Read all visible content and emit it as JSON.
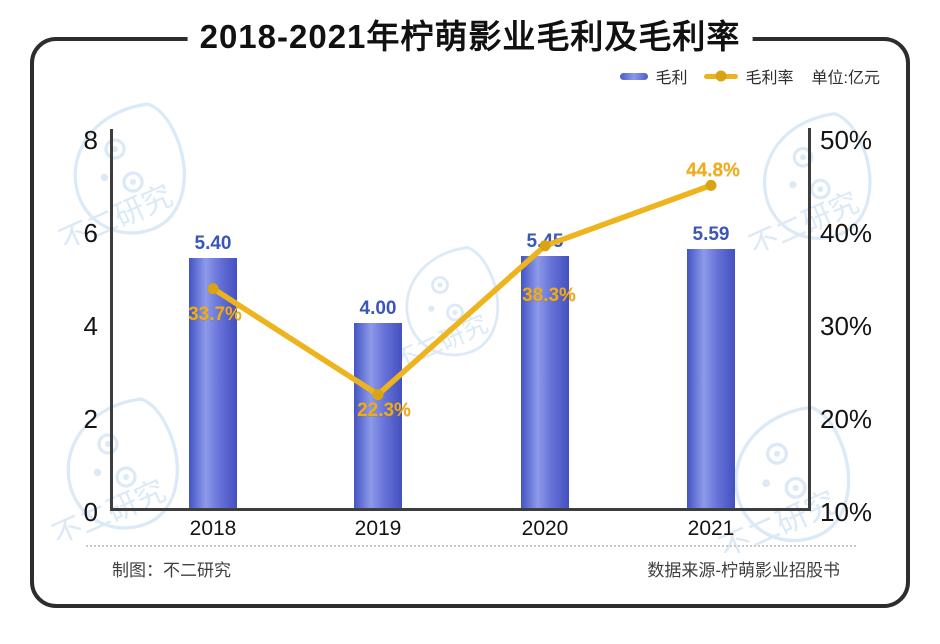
{
  "title": "2018-2021年柠萌影业毛利及毛利率",
  "legend": {
    "bar_label": "毛利",
    "line_label": "毛利率",
    "unit_label": "单位:亿元"
  },
  "watermark": {
    "text": "不二研究"
  },
  "footer": {
    "left": "制图：不二研究",
    "right": "数据来源-柠萌影业招股书"
  },
  "colors": {
    "bar_edge": "#4354c4",
    "bar_highlight": "#8d9ae8",
    "bar_value_label": "#3a56b8",
    "line": "#eeb41d",
    "line_dot": "#d9a314",
    "pct_label": "#efac15",
    "axis": "#3d3d3d",
    "frame": "#2d2d2d",
    "watermark": "#bfd9f0"
  },
  "chart_data": {
    "type": "bar",
    "subtype": "bar+line-combo",
    "title": "2018-2021年柠萌影业毛利及毛利率",
    "categories": [
      "2018",
      "2019",
      "2020",
      "2021"
    ],
    "series": [
      {
        "name": "毛利",
        "type": "bar",
        "axis": "left",
        "values": [
          5.4,
          4.0,
          5.45,
          5.59
        ],
        "labels": [
          "5.40",
          "4.00",
          "5.45",
          "5.59"
        ]
      },
      {
        "name": "毛利率",
        "type": "line",
        "axis": "right",
        "values": [
          33.7,
          22.3,
          38.3,
          44.8
        ],
        "labels": [
          "33.7%",
          "22.3%",
          "38.3%",
          "44.8%"
        ]
      }
    ],
    "left_axis": {
      "min": 0,
      "max": 8,
      "ticks": [
        "8",
        "6",
        "4",
        "2",
        "0"
      ],
      "tick_values": [
        8,
        6,
        4,
        2,
        0
      ]
    },
    "right_axis": {
      "min": 10,
      "max": 50,
      "ticks": [
        "50%",
        "40%",
        "30%",
        "20%",
        "10%"
      ],
      "tick_values": [
        50,
        40,
        30,
        20,
        10
      ]
    },
    "unit": "亿元",
    "grid": false,
    "legend_position": "top-right"
  }
}
